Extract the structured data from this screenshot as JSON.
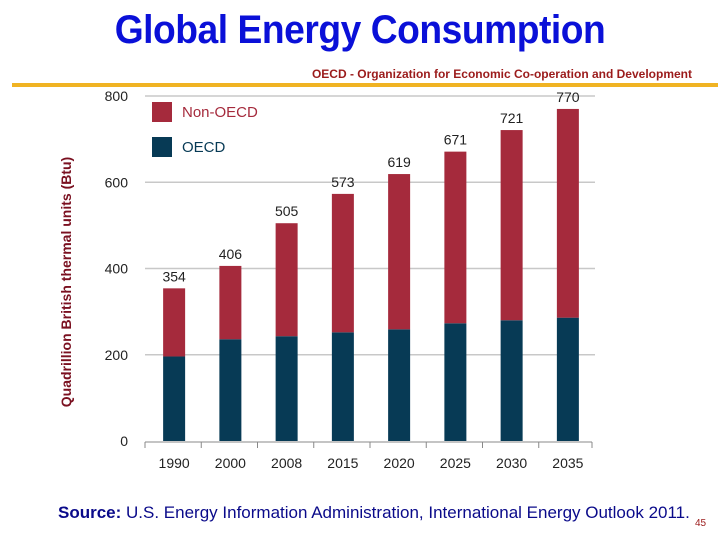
{
  "slide": {
    "title": "Global Energy Consumption",
    "subtitle": "OECD - Organization for Economic Co-operation and Development",
    "source_label": "Source:",
    "source_text": " U.S. Energy Information Administration, International Energy Outlook 2011.",
    "page_number": "45"
  },
  "colors": {
    "title": "#0a10d8",
    "rule": "#f0b323",
    "non_oecd": "#a52a3c",
    "oecd": "#073a55"
  },
  "chart_data": {
    "type": "bar",
    "stacked": true,
    "title": "Global Energy Consumption",
    "xlabel": "",
    "ylabel": "Quadrillion British thermal units (Btu)",
    "categories": [
      "1990",
      "2000",
      "2008",
      "2015",
      "2020",
      "2025",
      "2030",
      "2035"
    ],
    "series": [
      {
        "name": "OECD",
        "color": "#073a55",
        "values": [
          196,
          236,
          243,
          252,
          259,
          273,
          280,
          286
        ]
      },
      {
        "name": "Non-OECD",
        "color": "#a52a3c",
        "values": [
          158,
          170,
          262,
          321,
          360,
          398,
          441,
          484
        ]
      }
    ],
    "totals": [
      354,
      406,
      505,
      573,
      619,
      671,
      721,
      770
    ],
    "total_labels": [
      "354",
      "406",
      "505",
      "573",
      "619",
      "671",
      "721",
      "770"
    ],
    "ylim": [
      0,
      800
    ],
    "yticks": [
      0,
      200,
      400,
      600,
      800
    ],
    "ytick_labels": [
      "0",
      "200",
      "400",
      "600",
      "800"
    ],
    "grid": true,
    "legend": {
      "position": "top-left",
      "entries": [
        {
          "label": "Non-OECD",
          "color": "#a52a3c"
        },
        {
          "label": "OECD",
          "color": "#073a55"
        }
      ]
    }
  }
}
